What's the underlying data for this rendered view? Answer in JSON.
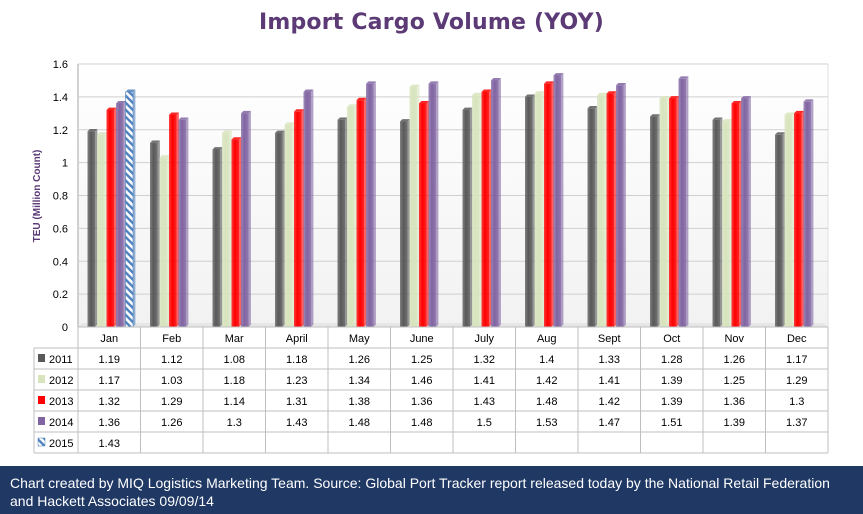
{
  "chart_data": {
    "type": "bar",
    "title": "Import Cargo Volume (YOY)",
    "ylabel": "TEU (Million Count)",
    "xlabel": "",
    "ylim": [
      0,
      1.6
    ],
    "yticks": [
      "0",
      "0.2",
      "0.4",
      "0.6",
      "0.8",
      "1",
      "1.2",
      "1.4",
      "1.6"
    ],
    "grid": true,
    "legend": "data-table",
    "categories": [
      "Jan",
      "Feb",
      "Mar",
      "April",
      "May",
      "June",
      "July",
      "Aug",
      "Sept",
      "Oct",
      "Nov",
      "Dec"
    ],
    "series": [
      {
        "name": "2011",
        "color": "#595959",
        "pattern": "solid",
        "values": [
          1.19,
          1.12,
          1.08,
          1.18,
          1.26,
          1.25,
          1.32,
          1.4,
          1.33,
          1.28,
          1.26,
          1.17
        ]
      },
      {
        "name": "2012",
        "color": "#d7e4bd",
        "pattern": "solid",
        "values": [
          1.17,
          1.03,
          1.18,
          1.23,
          1.34,
          1.46,
          1.41,
          1.42,
          1.41,
          1.39,
          1.25,
          1.29
        ]
      },
      {
        "name": "2013",
        "color": "#ff0000",
        "pattern": "solid",
        "values": [
          1.32,
          1.29,
          1.14,
          1.31,
          1.38,
          1.36,
          1.43,
          1.48,
          1.42,
          1.39,
          1.36,
          1.3
        ]
      },
      {
        "name": "2014",
        "color": "#8064a2",
        "pattern": "solid",
        "values": [
          1.36,
          1.26,
          1.3,
          1.43,
          1.48,
          1.48,
          1.5,
          1.53,
          1.47,
          1.51,
          1.39,
          1.37
        ]
      },
      {
        "name": "2015",
        "color": "#4f81bd",
        "pattern": "hatch",
        "values": [
          1.43,
          null,
          null,
          null,
          null,
          null,
          null,
          null,
          null,
          null,
          null,
          null
        ]
      }
    ]
  },
  "footer": {
    "text": "Chart created by MIQ Logistics Marketing Team. Source: Global Port Tracker report released today by the National Retail Federation and Hackett Associates 09/09/14"
  }
}
